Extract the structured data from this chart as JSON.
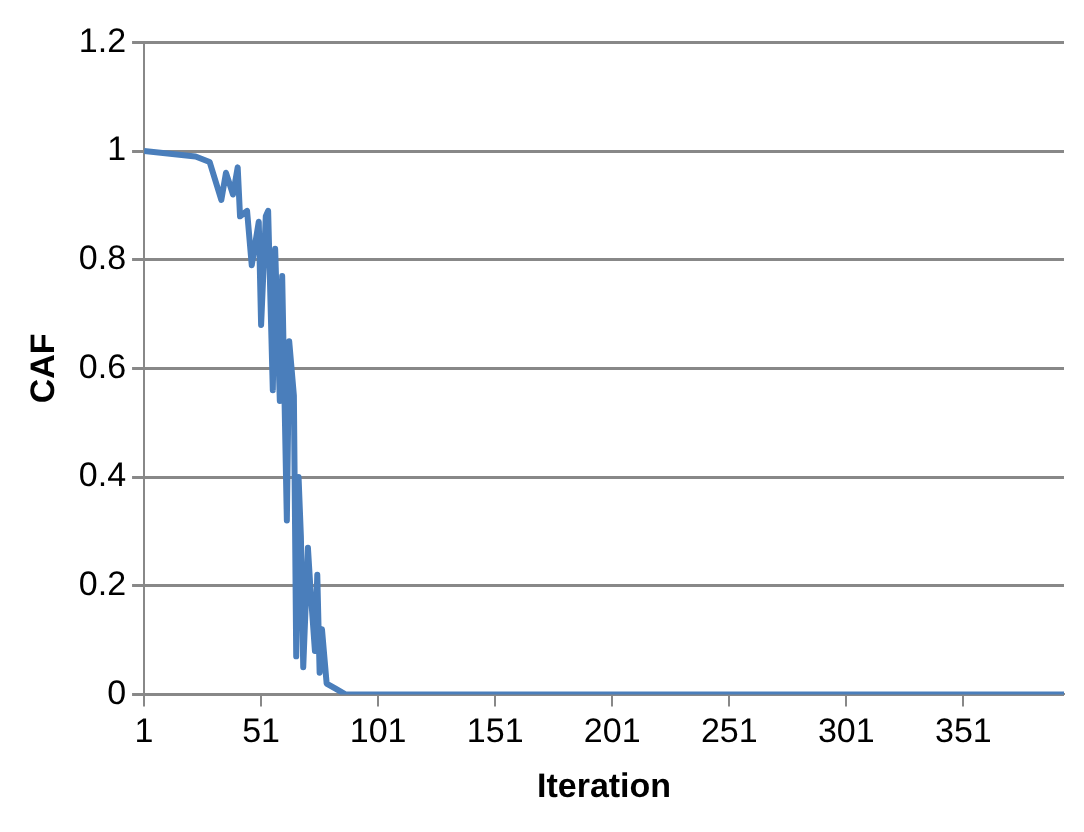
{
  "chart_data": {
    "type": "line",
    "xlabel": "Iteration",
    "ylabel": "CAF",
    "x": [
      1,
      23,
      29,
      34,
      36,
      39,
      41,
      42,
      45,
      47,
      50,
      51,
      53,
      54,
      56,
      57,
      59,
      60,
      62,
      63,
      65,
      66,
      67,
      68,
      69,
      71,
      72,
      74,
      75,
      76,
      77,
      79,
      83,
      87,
      394
    ],
    "series": [
      {
        "color": "#4a7ebb",
        "values": [
          1.0,
          0.99,
          0.98,
          0.91,
          0.96,
          0.92,
          0.97,
          0.88,
          0.89,
          0.79,
          0.87,
          0.68,
          0.88,
          0.89,
          0.56,
          0.82,
          0.54,
          0.77,
          0.32,
          0.65,
          0.55,
          0.07,
          0.4,
          0.29,
          0.05,
          0.27,
          0.2,
          0.08,
          0.22,
          0.04,
          0.12,
          0.02,
          0.01,
          0,
          0
        ]
      }
    ],
    "xlim": [
      1,
      394
    ],
    "xticks": [
      1,
      51,
      101,
      151,
      201,
      251,
      301,
      351
    ],
    "ylim": [
      0,
      1.2
    ],
    "yticks": [
      0,
      0.2,
      0.4,
      0.6,
      0.8,
      1,
      1.2
    ],
    "grid": "y",
    "legend": false,
    "marker": "none",
    "line_style": "solid"
  }
}
